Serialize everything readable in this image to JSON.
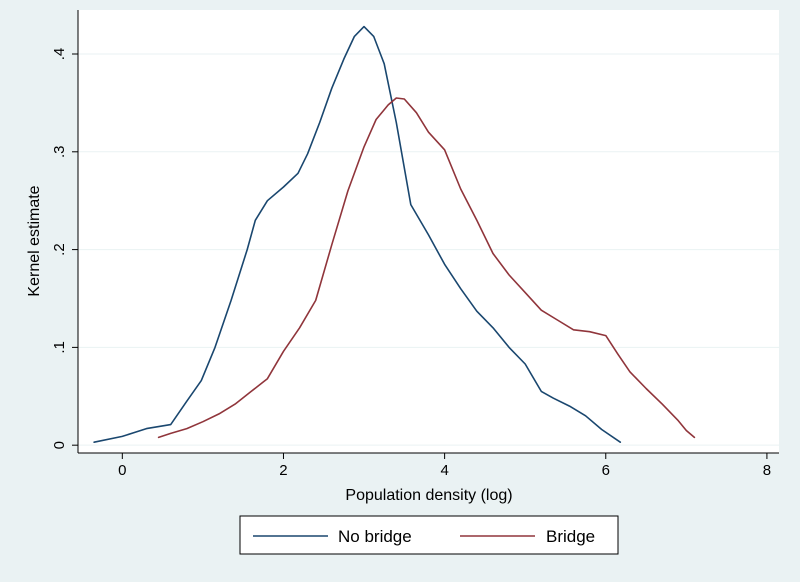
{
  "chart_data": {
    "type": "line",
    "title": "",
    "xlabel": "Population density (log)",
    "ylabel": "Kernel estimate",
    "xlim": [
      -0.55,
      8.15
    ],
    "ylim": [
      -0.008,
      0.445
    ],
    "x_ticks": [
      0,
      2,
      4,
      6,
      8
    ],
    "x_tick_labels": [
      "0",
      "2",
      "4",
      "6",
      "8"
    ],
    "y_ticks": [
      0,
      0.1,
      0.2,
      0.3,
      0.4
    ],
    "y_tick_labels": [
      "0",
      ".1",
      ".2",
      ".3",
      ".4"
    ],
    "grid": "horizontal",
    "legend_position": "bottom",
    "series": [
      {
        "name": "No bridge",
        "color": "#1a476f",
        "x": [
          -0.35,
          0.0,
          0.15,
          0.3,
          0.6,
          0.8,
          0.98,
          1.15,
          1.35,
          1.55,
          1.65,
          1.8,
          2.0,
          2.18,
          2.3,
          2.45,
          2.6,
          2.75,
          2.88,
          3.0,
          3.12,
          3.25,
          3.4,
          3.58,
          3.8,
          4.0,
          4.2,
          4.4,
          4.6,
          4.8,
          5.0,
          5.2,
          5.35,
          5.55,
          5.75,
          5.95,
          6.18
        ],
        "y": [
          0.003,
          0.009,
          0.013,
          0.017,
          0.021,
          0.045,
          0.066,
          0.1,
          0.148,
          0.2,
          0.23,
          0.25,
          0.264,
          0.278,
          0.298,
          0.33,
          0.365,
          0.395,
          0.418,
          0.428,
          0.418,
          0.39,
          0.33,
          0.246,
          0.215,
          0.185,
          0.16,
          0.137,
          0.12,
          0.1,
          0.083,
          0.055,
          0.048,
          0.04,
          0.03,
          0.016,
          0.003
        ]
      },
      {
        "name": "Bridge",
        "color": "#90353b",
        "x": [
          0.45,
          0.6,
          0.8,
          1.0,
          1.2,
          1.4,
          1.6,
          1.8,
          2.0,
          2.2,
          2.4,
          2.6,
          2.8,
          3.0,
          3.15,
          3.3,
          3.4,
          3.5,
          3.65,
          3.8,
          4.0,
          4.2,
          4.4,
          4.6,
          4.8,
          5.0,
          5.2,
          5.4,
          5.6,
          5.8,
          6.0,
          6.15,
          6.3,
          6.5,
          6.7,
          6.9,
          7.0,
          7.1
        ],
        "y": [
          0.008,
          0.012,
          0.017,
          0.024,
          0.032,
          0.042,
          0.055,
          0.068,
          0.096,
          0.12,
          0.148,
          0.205,
          0.26,
          0.305,
          0.333,
          0.348,
          0.355,
          0.354,
          0.34,
          0.32,
          0.302,
          0.262,
          0.23,
          0.196,
          0.174,
          0.156,
          0.138,
          0.128,
          0.118,
          0.116,
          0.112,
          0.093,
          0.075,
          0.058,
          0.042,
          0.025,
          0.015,
          0.008
        ]
      }
    ]
  }
}
